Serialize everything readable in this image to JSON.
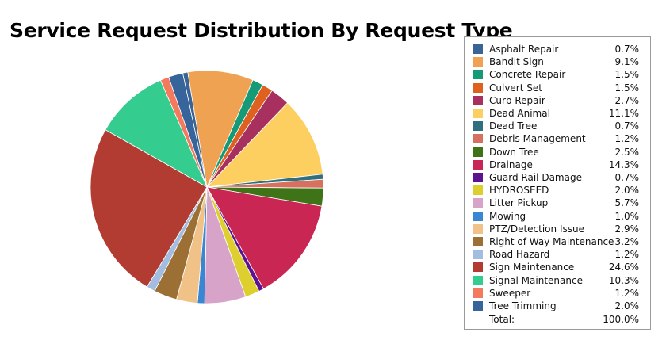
{
  "chart_data": {
    "type": "pie",
    "title": "Service Request Distribution By Request Type",
    "legend_position": "right",
    "slices": [
      {
        "label": "Asphalt Repair",
        "value": 0.7,
        "display": "0.7%",
        "color": "#3a6496"
      },
      {
        "label": "Bandit Sign",
        "value": 9.1,
        "display": "9.1%",
        "color": "#efa352"
      },
      {
        "label": "Concrete Repair",
        "value": 1.5,
        "display": "1.5%",
        "color": "#149a76"
      },
      {
        "label": "Culvert Set",
        "value": 1.5,
        "display": "1.5%",
        "color": "#de6120"
      },
      {
        "label": "Curb Repair",
        "value": 2.7,
        "display": "2.7%",
        "color": "#a8305e"
      },
      {
        "label": "Dead Animal",
        "value": 11.1,
        "display": "11.1%",
        "color": "#fdcf60"
      },
      {
        "label": "Dead Tree",
        "value": 0.7,
        "display": "0.7%",
        "color": "#2f6f7e"
      },
      {
        "label": "Debris Management",
        "value": 1.2,
        "display": "1.2%",
        "color": "#d6715f"
      },
      {
        "label": "Down Tree",
        "value": 2.5,
        "display": "2.5%",
        "color": "#3e7318"
      },
      {
        "label": "Drainage",
        "value": 14.3,
        "display": "14.3%",
        "color": "#c92654"
      },
      {
        "label": "Guard Rail Damage",
        "value": 0.7,
        "display": "0.7%",
        "color": "#5b1391"
      },
      {
        "label": "HYDROSEED",
        "value": 2.0,
        "display": "2.0%",
        "color": "#ddd02e"
      },
      {
        "label": "Litter Pickup",
        "value": 5.7,
        "display": "5.7%",
        "color": "#d7a3c9"
      },
      {
        "label": "Mowing",
        "value": 1.0,
        "display": "1.0%",
        "color": "#3a86d2"
      },
      {
        "label": "PTZ/Detection Issue",
        "value": 2.9,
        "display": "2.9%",
        "color": "#f1c288"
      },
      {
        "label": "Right of Way Maintenance",
        "value": 3.2,
        "display": "3.2%",
        "color": "#9c7035"
      },
      {
        "label": "Road Hazard",
        "value": 1.2,
        "display": "1.2%",
        "color": "#a3bde0"
      },
      {
        "label": "Sign Maintenance",
        "value": 24.6,
        "display": "24.6%",
        "color": "#b23c32"
      },
      {
        "label": "Signal Maintenance",
        "value": 10.3,
        "display": "10.3%",
        "color": "#35cc8f"
      },
      {
        "label": "Sweeper",
        "value": 1.2,
        "display": "1.2%",
        "color": "#f47a5e"
      },
      {
        "label": "Tree Trimming",
        "value": 2.0,
        "display": "2.0%",
        "color": "#37649a"
      }
    ],
    "total_label": "Total:",
    "total_value": "100.0%"
  }
}
